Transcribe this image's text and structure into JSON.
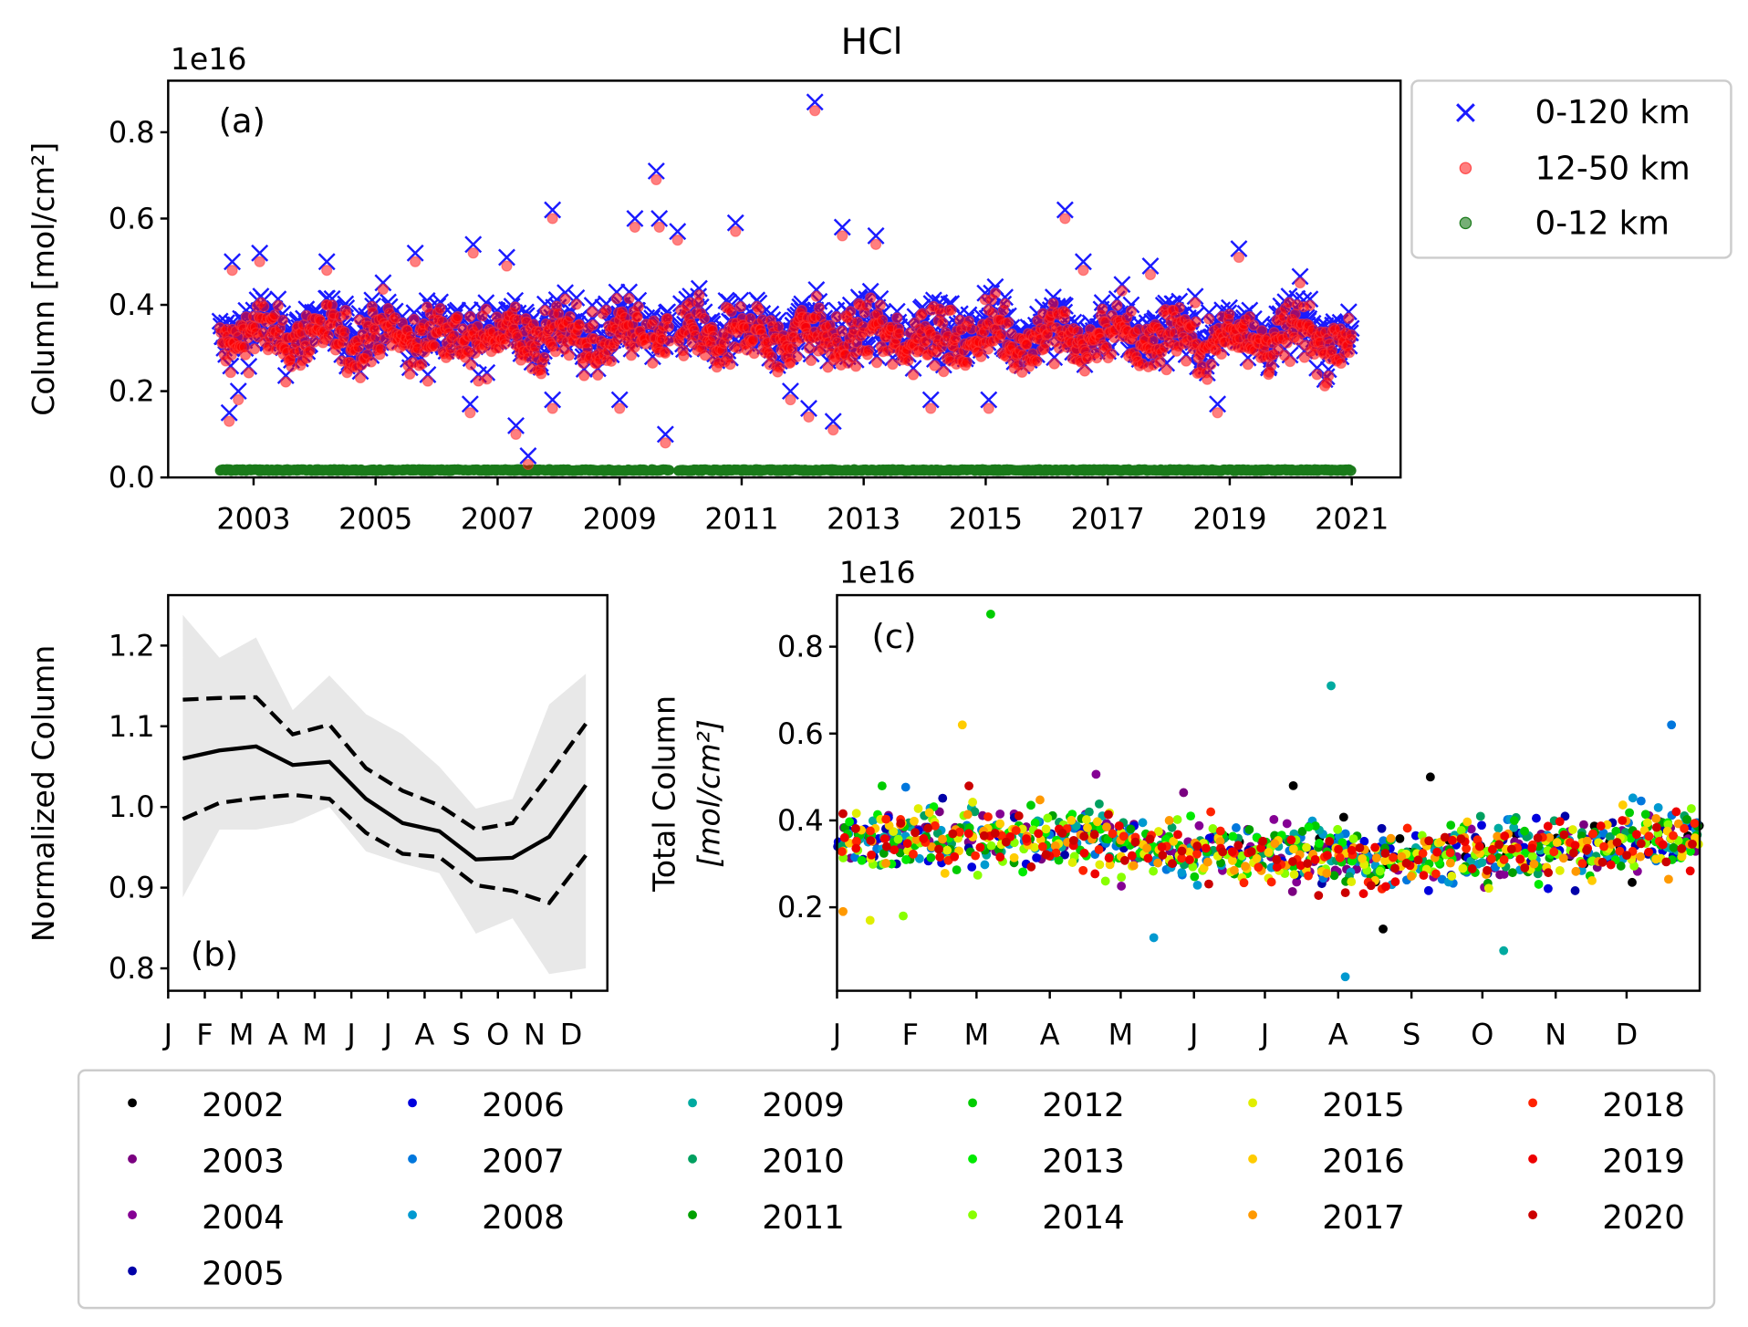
{
  "title": "HCl",
  "chart_data": [
    {
      "panel": "(a)",
      "type": "scatter",
      "ylabel": "Column [mol/cm²]",
      "y_offset_label": "1e16",
      "ylim": [
        0,
        0.92
      ],
      "xlim": [
        2001.6,
        2021.8
      ],
      "yticks": [
        "0.0",
        "0.2",
        "0.4",
        "0.6",
        "0.8"
      ],
      "xticks": [
        "2003",
        "2005",
        "2007",
        "2009",
        "2011",
        "2013",
        "2015",
        "2017",
        "2019",
        "2021"
      ],
      "legend": {
        "placement": "outside-top-right",
        "entries": [
          "0-120 km",
          "12-50 km",
          "0-12 km"
        ]
      },
      "series": [
        {
          "name": "0-120 km",
          "marker": "x",
          "color": "#1a1aff",
          "typical_range": [
            0.25,
            0.45
          ],
          "mean": 0.34
        },
        {
          "name": "12-50 km",
          "marker": "o",
          "color": "#ff0000",
          "typical_range": [
            0.23,
            0.43
          ],
          "mean": 0.325
        },
        {
          "name": "0-12 km",
          "marker": "o",
          "color": "#1a7a1a",
          "typical_range": [
            0.012,
            0.02
          ],
          "mean": 0.015
        }
      ],
      "date_range": [
        2002.45,
        2021.0
      ],
      "gaps": [
        [
          2009.45,
          2009.5
        ],
        [
          2009.83,
          2009.95
        ]
      ],
      "outliers_0_120": [
        [
          2002.6,
          0.15
        ],
        [
          2002.65,
          0.5
        ],
        [
          2002.75,
          0.2
        ],
        [
          2003.1,
          0.52
        ],
        [
          2004.2,
          0.5
        ],
        [
          2005.65,
          0.52
        ],
        [
          2006.6,
          0.54
        ],
        [
          2006.55,
          0.17
        ],
        [
          2007.15,
          0.51
        ],
        [
          2007.3,
          0.12
        ],
        [
          2007.5,
          0.05
        ],
        [
          2007.9,
          0.62
        ],
        [
          2007.9,
          0.18
        ],
        [
          2009.0,
          0.18
        ],
        [
          2009.25,
          0.6
        ],
        [
          2009.6,
          0.71
        ],
        [
          2009.65,
          0.6
        ],
        [
          2009.75,
          0.1
        ],
        [
          2009.95,
          0.57
        ],
        [
          2010.9,
          0.59
        ],
        [
          2011.8,
          0.2
        ],
        [
          2012.1,
          0.16
        ],
        [
          2012.2,
          0.87
        ],
        [
          2012.5,
          0.13
        ],
        [
          2012.65,
          0.58
        ],
        [
          2013.2,
          0.56
        ],
        [
          2014.1,
          0.18
        ],
        [
          2015.05,
          0.18
        ],
        [
          2016.3,
          0.62
        ],
        [
          2016.6,
          0.5
        ],
        [
          2017.7,
          0.49
        ],
        [
          2018.8,
          0.17
        ],
        [
          2019.15,
          0.53
        ]
      ]
    },
    {
      "panel": "(b)",
      "type": "line",
      "ylabel": "Normalized Column",
      "ylim": [
        0.77,
        1.265
      ],
      "yticks": [
        "0.8",
        "0.9",
        "1.0",
        "1.1",
        "1.2"
      ],
      "categories": [
        "J",
        "F",
        "M",
        "A",
        "M",
        "J",
        "J",
        "A",
        "S",
        "O",
        "N",
        "D"
      ],
      "series": [
        {
          "style": "solid",
          "values": [
            1.06,
            1.07,
            1.075,
            1.052,
            1.056,
            1.01,
            0.98,
            0.97,
            0.935,
            0.937,
            0.963,
            1.027
          ]
        },
        {
          "style": "dashed-upper",
          "values": [
            1.133,
            1.135,
            1.136,
            1.09,
            1.102,
            1.048,
            1.02,
            1.002,
            0.972,
            0.98,
            1.04,
            1.103
          ]
        },
        {
          "style": "dashed-lower",
          "values": [
            0.985,
            1.005,
            1.011,
            1.015,
            1.01,
            0.968,
            0.942,
            0.938,
            0.903,
            0.896,
            0.881,
            0.94
          ]
        }
      ],
      "band": {
        "upper": [
          1.238,
          1.185,
          1.21,
          1.12,
          1.163,
          1.115,
          1.09,
          1.05,
          0.998,
          1.01,
          1.127,
          1.165
        ],
        "lower": [
          0.888,
          0.972,
          0.972,
          0.98,
          1.0,
          0.945,
          0.93,
          0.918,
          0.843,
          0.862,
          0.793,
          0.8
        ],
        "color": "#e8e8e8"
      }
    },
    {
      "panel": "(c)",
      "type": "scatter",
      "ylabel_line1": "Total Column",
      "ylabel_line2": "[mol/cm²]",
      "y_offset_label": "1e16",
      "ylim": [
        0,
        0.92
      ],
      "yticks": [
        "0.2",
        "0.4",
        "0.6",
        "0.8"
      ],
      "xticks": [
        "J",
        "F",
        "M",
        "A",
        "M",
        "J",
        "J",
        "A",
        "S",
        "O",
        "N",
        "D"
      ],
      "typical_range": [
        0.25,
        0.45
      ],
      "outliers": [
        [
          65,
          0.875,
          "2012"
        ],
        [
          209,
          0.71,
          "2009"
        ],
        [
          53,
          0.62,
          "2016"
        ],
        [
          353,
          0.62,
          "2007"
        ],
        [
          215,
          0.04,
          "2008"
        ],
        [
          251,
          0.5,
          "2002"
        ],
        [
          193,
          0.48,
          "2002"
        ],
        [
          231,
          0.15,
          "2002"
        ],
        [
          134,
          0.13,
          "2008"
        ],
        [
          282,
          0.1,
          "2009"
        ],
        [
          14,
          0.17,
          "2015"
        ],
        [
          28,
          0.18,
          "2014"
        ]
      ],
      "legend": {
        "placement": "bottom",
        "entries": [
          {
            "year": "2002",
            "color": "#000000"
          },
          {
            "year": "2003",
            "color": "#7a0080"
          },
          {
            "year": "2004",
            "color": "#850094"
          },
          {
            "year": "2005",
            "color": "#0000a8"
          },
          {
            "year": "2006",
            "color": "#0000dd"
          },
          {
            "year": "2007",
            "color": "#0077dd"
          },
          {
            "year": "2008",
            "color": "#0099d0"
          },
          {
            "year": "2009",
            "color": "#00aaa0"
          },
          {
            "year": "2010",
            "color": "#00a060"
          },
          {
            "year": "2011",
            "color": "#00a000"
          },
          {
            "year": "2012",
            "color": "#00cc00"
          },
          {
            "year": "2013",
            "color": "#00ea00"
          },
          {
            "year": "2014",
            "color": "#88ff00"
          },
          {
            "year": "2015",
            "color": "#e0ee00"
          },
          {
            "year": "2016",
            "color": "#ffcc00"
          },
          {
            "year": "2017",
            "color": "#ff9900"
          },
          {
            "year": "2018",
            "color": "#ff2200"
          },
          {
            "year": "2019",
            "color": "#ee0000"
          },
          {
            "year": "2020",
            "color": "#cc0000"
          }
        ]
      }
    }
  ]
}
